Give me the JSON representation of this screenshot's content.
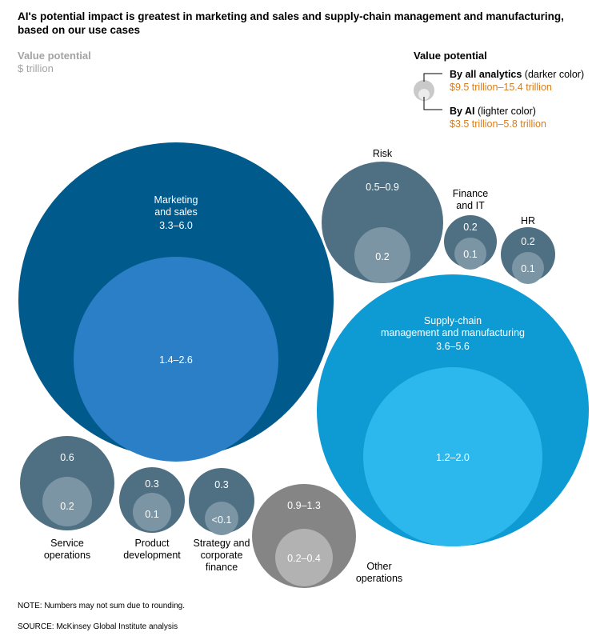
{
  "title_lines": [
    "AI's potential impact is greatest in marketing and sales and supply-chain management and manufacturing,",
    "based on our use cases"
  ],
  "units": {
    "label": "Value potential",
    "unit": "$ trillion"
  },
  "legend": {
    "title": "Value potential",
    "all_analytics": {
      "name": "By all analytics",
      "note": " (darker color)",
      "range": "$9.5 trillion–15.4 trillion"
    },
    "ai": {
      "name": "By AI",
      "note": " (lighter color)",
      "range": "$3.5 trillion–5.8 trillion"
    }
  },
  "colors": {
    "marketing_outer": "#005a8c",
    "marketing_inner": "#2a7fc7",
    "supply_outer": "#0e9bd4",
    "supply_inner": "#2cb8ec",
    "slate_outer": "#4f6f82",
    "slate_inner": "#7b95a5",
    "gray_outer": "#858585",
    "gray_inner": "#b2b2b2",
    "legend_outer": "#c9c9c9",
    "legend_inner": "#ebebeb",
    "range_orange": "#d67d1e"
  },
  "chart_data": {
    "type": "bubble",
    "unit": "$ trillion",
    "series": [
      {
        "name": "By all analytics"
      },
      {
        "name": "By AI"
      }
    ],
    "functions": [
      {
        "key": "marketing",
        "label_lines": [
          "Marketing",
          "and sales"
        ],
        "all_analytics": "3.3–6.0",
        "ai": "1.4–2.6",
        "all_analytics_range": [
          3.3,
          6.0
        ],
        "ai_range": [
          1.4,
          2.6
        ]
      },
      {
        "key": "supply",
        "label_lines": [
          "Supply-chain",
          "management and manufacturing"
        ],
        "all_analytics": "3.6–5.6",
        "ai": "1.2–2.0",
        "all_analytics_range": [
          3.6,
          5.6
        ],
        "ai_range": [
          1.2,
          2.0
        ]
      },
      {
        "key": "risk",
        "label_lines": [
          "Risk"
        ],
        "all_analytics": "0.5–0.9",
        "ai": "0.2",
        "all_analytics_range": [
          0.5,
          0.9
        ],
        "ai_range": [
          0.2,
          0.2
        ]
      },
      {
        "key": "finance_it",
        "label_lines": [
          "Finance",
          "and IT"
        ],
        "all_analytics": "0.2",
        "ai": "0.1",
        "all_analytics_range": [
          0.2,
          0.2
        ],
        "ai_range": [
          0.1,
          0.1
        ]
      },
      {
        "key": "hr",
        "label_lines": [
          "HR"
        ],
        "all_analytics": "0.2",
        "ai": "0.1",
        "all_analytics_range": [
          0.2,
          0.2
        ],
        "ai_range": [
          0.1,
          0.1
        ]
      },
      {
        "key": "service",
        "label_lines": [
          "Service",
          "operations"
        ],
        "all_analytics": "0.6",
        "ai": "0.2",
        "all_analytics_range": [
          0.6,
          0.6
        ],
        "ai_range": [
          0.2,
          0.2
        ]
      },
      {
        "key": "product",
        "label_lines": [
          "Product",
          "development"
        ],
        "all_analytics": "0.3",
        "ai": "0.1",
        "all_analytics_range": [
          0.3,
          0.3
        ],
        "ai_range": [
          0.1,
          0.1
        ]
      },
      {
        "key": "strategy",
        "label_lines": [
          "Strategy and",
          "corporate",
          "finance"
        ],
        "all_analytics": "0.3",
        "ai": "<0.1",
        "all_analytics_range": [
          0.3,
          0.3
        ],
        "ai_range": [
          0.0,
          0.1
        ]
      },
      {
        "key": "other",
        "label_lines": [
          "Other",
          "operations"
        ],
        "all_analytics": "0.9–1.3",
        "ai": "0.2–0.4",
        "all_analytics_range": [
          0.9,
          1.3
        ],
        "ai_range": [
          0.2,
          0.4
        ]
      }
    ]
  },
  "footer": {
    "note": "NOTE: Numbers may not sum due to rounding.",
    "source": "SOURCE:  McKinsey Global Institute analysis"
  }
}
